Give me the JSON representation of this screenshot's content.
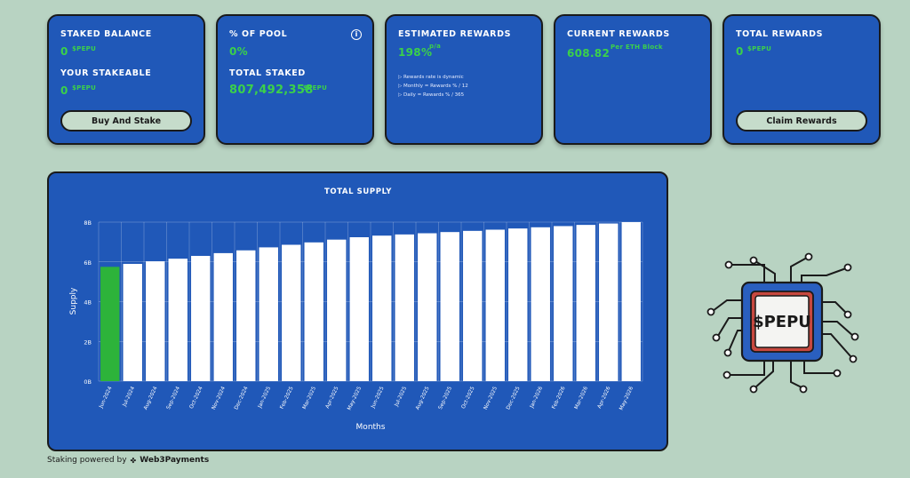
{
  "cards": {
    "staked": {
      "label": "STAKED BALANCE",
      "value": "0",
      "unit": "$PEPU",
      "label2": "YOUR STAKEABLE",
      "value2": "0",
      "unit2": "$PEPU",
      "button": "Buy And Stake"
    },
    "pool": {
      "label": "% OF POOL",
      "value": "0%",
      "info": "i",
      "label2": "TOTAL STAKED",
      "value2": "807,492,358",
      "unit2": "$PEPU"
    },
    "estimated": {
      "label": "ESTIMATED REWARDS",
      "value": "198%",
      "unit": "p/a",
      "notes": [
        "Rewards rate is dynamic",
        "Monthly = Rewards % / 12",
        "Daily = Rewards % / 365"
      ]
    },
    "current": {
      "label": "CURRENT REWARDS",
      "value": "608.82",
      "unit": "Per ETH Block"
    },
    "total": {
      "label": "TOTAL REWARDS",
      "value": "0",
      "unit": "$PEPU",
      "button": "Claim Rewards"
    }
  },
  "footer": {
    "prefix": "Staking powered by",
    "brand": "Web3Payments"
  },
  "logo": {
    "text": "$PEPU"
  },
  "colors": {
    "accent_green": "#3bd14a",
    "card_blue": "#2058b8",
    "highlight_bar": "#2db33a",
    "background": "#b8d3c2"
  },
  "chart_data": {
    "type": "bar",
    "title": "TOTAL SUPPLY",
    "xlabel": "Months",
    "ylabel": "Supply",
    "yticks": [
      "0B",
      "2B",
      "4B",
      "6B",
      "8B"
    ],
    "ylim": [
      0,
      8
    ],
    "categories": [
      "Jun-2024",
      "Jul-2024",
      "Aug-2024",
      "Sep-2024",
      "Oct-2024",
      "Nov-2024",
      "Dec-2024",
      "Jan-2025",
      "Feb-2025",
      "Mar-2025",
      "Apr-2025",
      "May-2025",
      "Jun-2025",
      "Jul-2025",
      "Aug-2025",
      "Sep-2025",
      "Oct-2025",
      "Nov-2025",
      "Dec-2025",
      "Jan-2026",
      "Feb-2026",
      "Mar-2026",
      "Apr-2026",
      "May-2026"
    ],
    "values": [
      5.75,
      5.9,
      6.03,
      6.16,
      6.3,
      6.44,
      6.58,
      6.73,
      6.86,
      6.98,
      7.12,
      7.24,
      7.32,
      7.38,
      7.44,
      7.5,
      7.56,
      7.62,
      7.68,
      7.74,
      7.8,
      7.86,
      7.93,
      8.0
    ],
    "highlight_index": 0,
    "grid": true
  }
}
